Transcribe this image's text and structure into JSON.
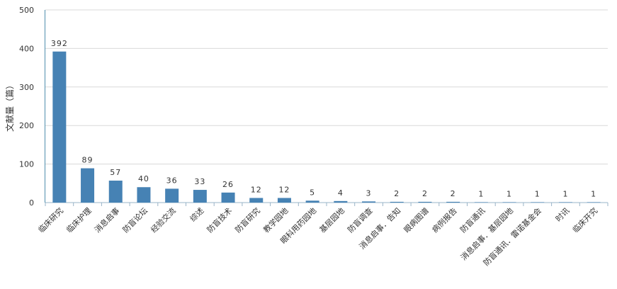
{
  "chart_data": {
    "type": "bar",
    "title": "",
    "xlabel": "",
    "ylabel": "文献量（篇）",
    "ylim": [
      0,
      500
    ],
    "yticks": [
      0,
      100,
      200,
      300,
      400,
      500
    ],
    "grid": true,
    "bar_color": "#4682B4",
    "categories": [
      "临床研究",
      "临床护理",
      "消息启事",
      "防盲论坛",
      "经验交流",
      "综述",
      "防盲技术",
      "防盲研究",
      "教学园地",
      "眼科用药园地",
      "基层园地",
      "防盲调查",
      "消息启事．告知",
      "眼病图谱",
      "病例报告",
      "防盲通讯",
      "消息启事．基层园地",
      "防盲通讯．雷诺基金会",
      "时讯",
      "临床开究"
    ],
    "values": [
      392,
      89,
      57,
      40,
      36,
      33,
      26,
      12,
      12,
      5,
      4,
      3,
      2,
      2,
      2,
      1,
      1,
      1,
      1,
      1
    ]
  }
}
